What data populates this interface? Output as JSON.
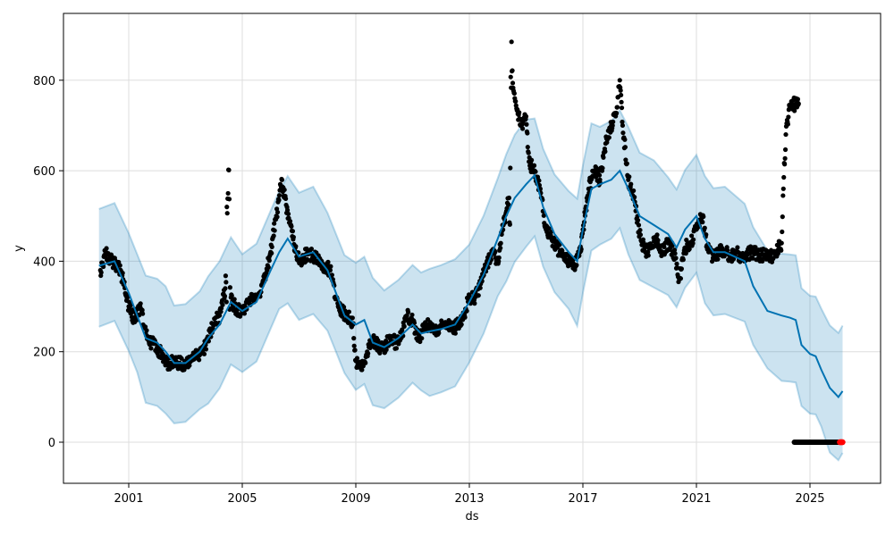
{
  "chart_data": {
    "type": "line",
    "title": "",
    "xlabel": "ds",
    "ylabel": "y",
    "xlim": [
      1998.6,
      2027.4
    ],
    "ylim": [
      -90,
      935
    ],
    "grid": true,
    "x_ticks": [
      {
        "value": 2001,
        "label": "2001"
      },
      {
        "value": 2005,
        "label": "2005"
      },
      {
        "value": 2009,
        "label": "2009"
      },
      {
        "value": 2013,
        "label": "2013"
      },
      {
        "value": 2017,
        "label": "2017"
      },
      {
        "value": 2021,
        "label": "2021"
      },
      {
        "value": 2025,
        "label": "2025"
      }
    ],
    "y_ticks": [
      {
        "value": 0,
        "label": "0"
      },
      {
        "value": 200,
        "label": "200"
      },
      {
        "value": 400,
        "label": "400"
      },
      {
        "value": 600,
        "label": "600"
      },
      {
        "value": 800,
        "label": "800"
      }
    ],
    "colors": {
      "forecast": "#0072B2",
      "interval": "#0072B2",
      "observed": "#000000",
      "highlight": "#ff0000",
      "grid": "#dddddd"
    },
    "forecast": {
      "name": "yhat",
      "x": [
        1999.95,
        2000.5,
        2001.0,
        2001.3,
        2001.6,
        2002.0,
        2002.3,
        2002.6,
        2003.0,
        2003.5,
        2003.8,
        2004.2,
        2004.6,
        2005.0,
        2005.5,
        2006.0,
        2006.3,
        2006.6,
        2007.0,
        2007.5,
        2008.0,
        2008.3,
        2008.6,
        2009.0,
        2009.3,
        2009.6,
        2010.0,
        2010.5,
        2011.0,
        2011.3,
        2011.6,
        2012.0,
        2012.5,
        2013.0,
        2013.5,
        2014.0,
        2014.3,
        2014.6,
        2015.0,
        2015.3,
        2015.6,
        2016.0,
        2016.5,
        2016.8,
        2017.0,
        2017.3,
        2017.6,
        2018.0,
        2018.3,
        2018.6,
        2019.0,
        2019.5,
        2020.0,
        2020.3,
        2020.6,
        2021.0,
        2021.3,
        2021.6,
        2022.0,
        2022.7,
        2023.0,
        2023.5,
        2024.0,
        2024.3,
        2024.5,
        2024.7,
        2025.0,
        2025.2,
        2025.4,
        2025.7,
        2026.0,
        2026.15
      ],
      "y": [
        390,
        400,
        330,
        280,
        230,
        220,
        200,
        175,
        175,
        200,
        230,
        260,
        310,
        290,
        310,
        380,
        420,
        450,
        410,
        420,
        380,
        330,
        280,
        260,
        270,
        220,
        210,
        230,
        260,
        240,
        245,
        250,
        260,
        310,
        370,
        450,
        500,
        540,
        570,
        590,
        520,
        460,
        420,
        400,
        470,
        560,
        570,
        580,
        600,
        560,
        500,
        480,
        460,
        430,
        470,
        500,
        450,
        420,
        420,
        400,
        345,
        290,
        280,
        275,
        270,
        215,
        195,
        190,
        160,
        120,
        100,
        113
      ]
    },
    "uncertainty_interval": {
      "lower_offset": -135,
      "upper_offset": 135
    },
    "observed": {
      "name": "y",
      "points": [
        [
          2000.0,
          380
        ],
        [
          2000.2,
          420
        ],
        [
          2000.4,
          400
        ],
        [
          2000.6,
          390
        ],
        [
          2000.8,
          360
        ],
        [
          2001.0,
          300
        ],
        [
          2001.2,
          270
        ],
        [
          2001.4,
          300
        ],
        [
          2001.6,
          240
        ],
        [
          2001.8,
          220
        ],
        [
          2002.0,
          210
        ],
        [
          2002.2,
          190
        ],
        [
          2002.4,
          170
        ],
        [
          2002.6,
          180
        ],
        [
          2002.8,
          175
        ],
        [
          2003.0,
          170
        ],
        [
          2003.2,
          180
        ],
        [
          2003.4,
          190
        ],
        [
          2003.6,
          200
        ],
        [
          2003.8,
          230
        ],
        [
          2004.0,
          260
        ],
        [
          2004.2,
          280
        ],
        [
          2004.4,
          340
        ],
        [
          2004.5,
          550
        ],
        [
          2004.6,
          320
        ],
        [
          2004.8,
          290
        ],
        [
          2005.0,
          290
        ],
        [
          2005.2,
          310
        ],
        [
          2005.4,
          320
        ],
        [
          2005.6,
          330
        ],
        [
          2005.8,
          360
        ],
        [
          2006.0,
          420
        ],
        [
          2006.2,
          500
        ],
        [
          2006.4,
          580
        ],
        [
          2006.5,
          540
        ],
        [
          2006.7,
          480
        ],
        [
          2006.9,
          420
        ],
        [
          2007.1,
          400
        ],
        [
          2007.3,
          420
        ],
        [
          2007.5,
          410
        ],
        [
          2007.7,
          400
        ],
        [
          2007.9,
          390
        ],
        [
          2008.1,
          380
        ],
        [
          2008.3,
          320
        ],
        [
          2008.5,
          290
        ],
        [
          2008.7,
          280
        ],
        [
          2008.9,
          260
        ],
        [
          2009.0,
          180
        ],
        [
          2009.2,
          160
        ],
        [
          2009.4,
          200
        ],
        [
          2009.6,
          230
        ],
        [
          2009.8,
          210
        ],
        [
          2010.0,
          210
        ],
        [
          2010.2,
          230
        ],
        [
          2010.4,
          220
        ],
        [
          2010.6,
          230
        ],
        [
          2010.8,
          280
        ],
        [
          2011.0,
          270
        ],
        [
          2011.2,
          230
        ],
        [
          2011.4,
          250
        ],
        [
          2011.6,
          260
        ],
        [
          2011.8,
          250
        ],
        [
          2012.0,
          255
        ],
        [
          2012.2,
          260
        ],
        [
          2012.4,
          250
        ],
        [
          2012.6,
          260
        ],
        [
          2012.8,
          280
        ],
        [
          2013.0,
          320
        ],
        [
          2013.2,
          320
        ],
        [
          2013.4,
          350
        ],
        [
          2013.6,
          390
        ],
        [
          2013.8,
          420
        ],
        [
          2014.0,
          400
        ],
        [
          2014.2,
          480
        ],
        [
          2014.4,
          540
        ],
        [
          2014.5,
          820
        ],
        [
          2014.6,
          760
        ],
        [
          2014.8,
          700
        ],
        [
          2015.0,
          720
        ],
        [
          2015.1,
          620
        ],
        [
          2015.3,
          600
        ],
        [
          2015.5,
          560
        ],
        [
          2015.7,
          470
        ],
        [
          2015.9,
          450
        ],
        [
          2016.1,
          430
        ],
        [
          2016.3,
          410
        ],
        [
          2016.5,
          400
        ],
        [
          2016.7,
          390
        ],
        [
          2016.9,
          420
        ],
        [
          2017.0,
          470
        ],
        [
          2017.2,
          560
        ],
        [
          2017.4,
          600
        ],
        [
          2017.6,
          580
        ],
        [
          2017.8,
          660
        ],
        [
          2018.0,
          700
        ],
        [
          2018.2,
          740
        ],
        [
          2018.3,
          800
        ],
        [
          2018.4,
          700
        ],
        [
          2018.6,
          580
        ],
        [
          2018.8,
          540
        ],
        [
          2019.0,
          460
        ],
        [
          2019.2,
          420
        ],
        [
          2019.4,
          430
        ],
        [
          2019.6,
          450
        ],
        [
          2019.8,
          420
        ],
        [
          2020.0,
          440
        ],
        [
          2020.2,
          420
        ],
        [
          2020.4,
          360
        ],
        [
          2020.6,
          430
        ],
        [
          2020.8,
          440
        ],
        [
          2021.0,
          470
        ],
        [
          2021.2,
          500
        ],
        [
          2021.4,
          430
        ],
        [
          2021.6,
          410
        ],
        [
          2021.8,
          420
        ],
        [
          2022.0,
          420
        ],
        [
          2022.2,
          410
        ],
        [
          2022.4,
          420
        ],
        [
          2022.6,
          410
        ],
        [
          2022.8,
          415
        ],
        [
          2023.0,
          420
        ],
        [
          2023.2,
          410
        ],
        [
          2023.4,
          415
        ],
        [
          2023.6,
          410
        ],
        [
          2023.8,
          420
        ],
        [
          2024.0,
          440
        ],
        [
          2024.05,
          545
        ],
        [
          2024.15,
          680
        ],
        [
          2024.3,
          745
        ],
        [
          2024.5,
          748
        ],
        [
          2024.6,
          748
        ]
      ]
    },
    "future_zero": {
      "x_range": [
        2024.45,
        2026.05
      ],
      "value": 0
    },
    "highlight_points": {
      "x_range": [
        2026.05,
        2026.15
      ],
      "value": 0
    }
  }
}
